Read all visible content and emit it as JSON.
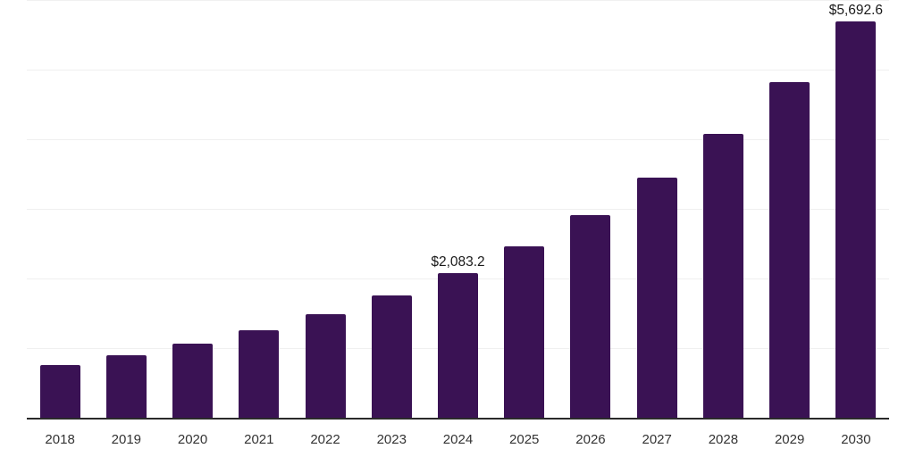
{
  "chart_data": {
    "type": "bar",
    "title": "",
    "xlabel": "",
    "ylabel": "",
    "categories": [
      "2018",
      "2019",
      "2020",
      "2021",
      "2022",
      "2023",
      "2024",
      "2025",
      "2026",
      "2027",
      "2028",
      "2029",
      "2030"
    ],
    "values": [
      762.3,
      901.4,
      1065.9,
      1260.3,
      1490.2,
      1762.0,
      2083.2,
      2463.3,
      2912.7,
      3444.1,
      4072.4,
      4815.2,
      5692.6
    ],
    "data_labels": {
      "2024": "$2,083.2",
      "2030": "$5,692.6"
    },
    "ylim": [
      0,
      6000
    ],
    "gridline_step": 1000,
    "grid": true,
    "legend": false,
    "y_axis_labels_visible": false,
    "colors": {
      "bar": "#3a1254",
      "grid": "#f0f0f0",
      "axis": "#2a2a2a",
      "data_label": "#1a1a1a",
      "tick_label": "#333333"
    }
  }
}
